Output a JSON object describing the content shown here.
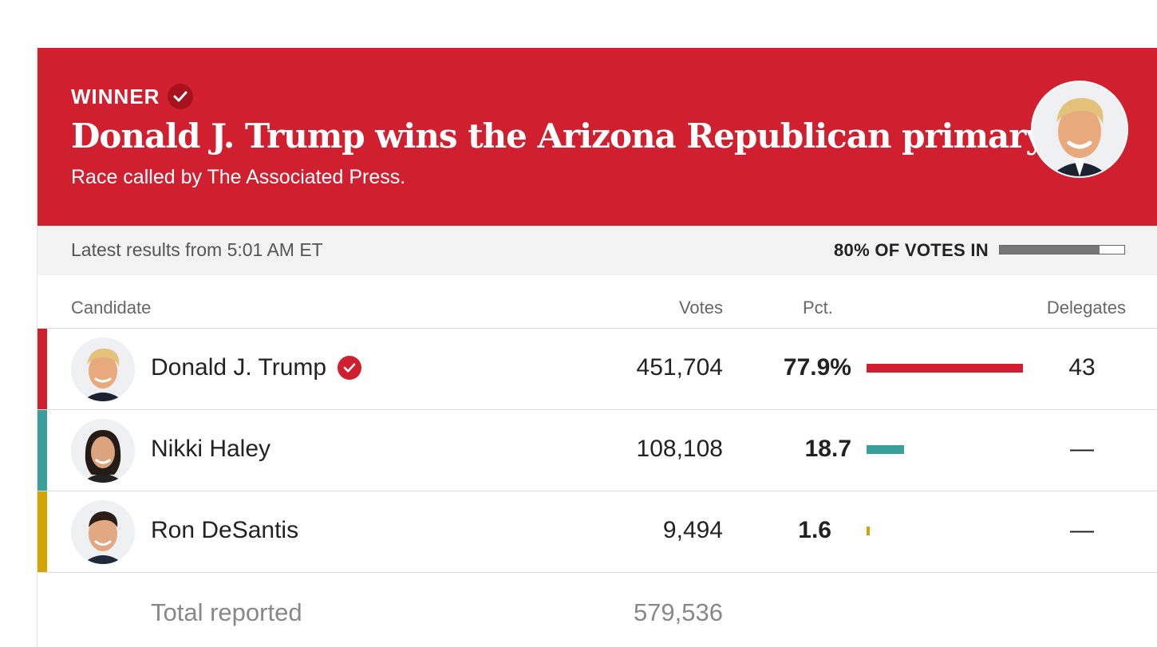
{
  "banner": {
    "winner_label": "WINNER",
    "headline": "Donald J. Trump wins the Arizona Republican primary.",
    "subhead": "Race called by The Associated Press.",
    "color": "#d0202f"
  },
  "status": {
    "latest": "Latest results from 5:01 AM ET",
    "votes_in_label": "80% OF VOTES IN",
    "votes_in_fraction": 0.8
  },
  "table": {
    "headers": {
      "candidate": "Candidate",
      "votes": "Votes",
      "pct": "Pct.",
      "delegates": "Delegates"
    },
    "rows": [
      {
        "name": "Donald J. Trump",
        "votes": "451,704",
        "pct": "77.9%",
        "pct_value": 77.9,
        "delegates": "43",
        "color": "#d0202f",
        "winner": true
      },
      {
        "name": "Nikki Haley",
        "votes": "108,108",
        "pct": "18.7",
        "pct_value": 18.7,
        "delegates": "—",
        "color": "#3a9e9a",
        "winner": false
      },
      {
        "name": "Ron DeSantis",
        "votes": "9,494",
        "pct": "1.6",
        "pct_value": 1.6,
        "delegates": "—",
        "color": "#d4a400",
        "winner": false
      }
    ],
    "total_label": "Total reported",
    "total_votes": "579,536"
  }
}
